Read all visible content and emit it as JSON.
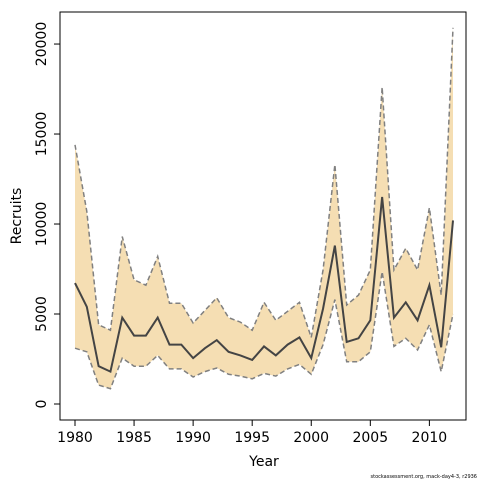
{
  "chart_data": {
    "type": "line-band",
    "xlabel": "Year",
    "ylabel": "Recruits",
    "footnote": "stockassessment.org, mack-day4-3, r2936",
    "x": [
      1980,
      1981,
      1982,
      1983,
      1984,
      1985,
      1986,
      1987,
      1988,
      1989,
      1990,
      1991,
      1992,
      1993,
      1994,
      1995,
      1996,
      1997,
      1998,
      1999,
      2000,
      2001,
      2002,
      2003,
      2004,
      2005,
      2006,
      2007,
      2008,
      2009,
      2010,
      2011,
      2012
    ],
    "values": [
      6720,
      5400,
      2100,
      1800,
      4800,
      3800,
      3800,
      4800,
      3300,
      3300,
      2550,
      3100,
      3550,
      2900,
      2700,
      2450,
      3200,
      2700,
      3300,
      3700,
      2550,
      5300,
      8800,
      3450,
      3650,
      4650,
      11500,
      4800,
      5650,
      4650,
      6600,
      3150,
      10200
    ],
    "upper": [
      14400,
      10700,
      4400,
      4100,
      9300,
      6900,
      6600,
      8200,
      5600,
      5600,
      4500,
      5200,
      5900,
      4800,
      4550,
      4100,
      5650,
      4650,
      5150,
      5650,
      3700,
      7450,
      13300,
      5500,
      6050,
      7450,
      17600,
      7450,
      8650,
      7450,
      10900,
      6050,
      20900
    ],
    "lower": [
      3100,
      2900,
      1050,
      850,
      2550,
      2100,
      2100,
      2700,
      1950,
      1950,
      1500,
      1800,
      2000,
      1650,
      1550,
      1400,
      1700,
      1550,
      1950,
      2200,
      1650,
      3300,
      5800,
      2350,
      2350,
      2900,
      7350,
      3200,
      3650,
      3000,
      4400,
      1800,
      5000
    ],
    "line_color": "#444444",
    "band_color": "#f5deb3",
    "band_edge_color": "#808080",
    "xlim": [
      1978.73,
      2013.1
    ],
    "ylim": [
      -889,
      21780
    ],
    "xticks": [
      1980,
      1985,
      1990,
      1995,
      2000,
      2005,
      2010
    ],
    "yticks": [
      0,
      5000,
      10000,
      15000,
      20000
    ]
  }
}
